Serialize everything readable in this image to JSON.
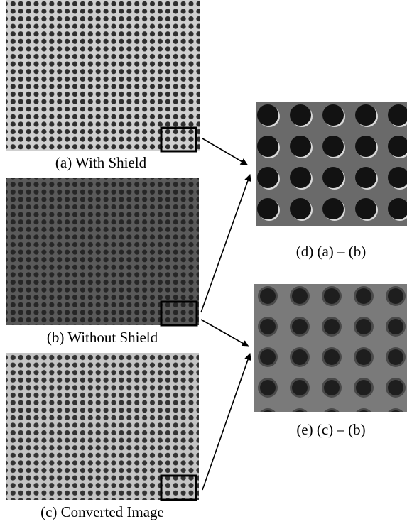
{
  "panels": [
    {
      "label": "(a) With Shield"
    },
    {
      "label": "(b) Without Shield"
    },
    {
      "label": "(c) Converted Image"
    },
    {
      "label": "(d) (a) – (b)"
    },
    {
      "label": "(e) (c) – (b)"
    }
  ]
}
